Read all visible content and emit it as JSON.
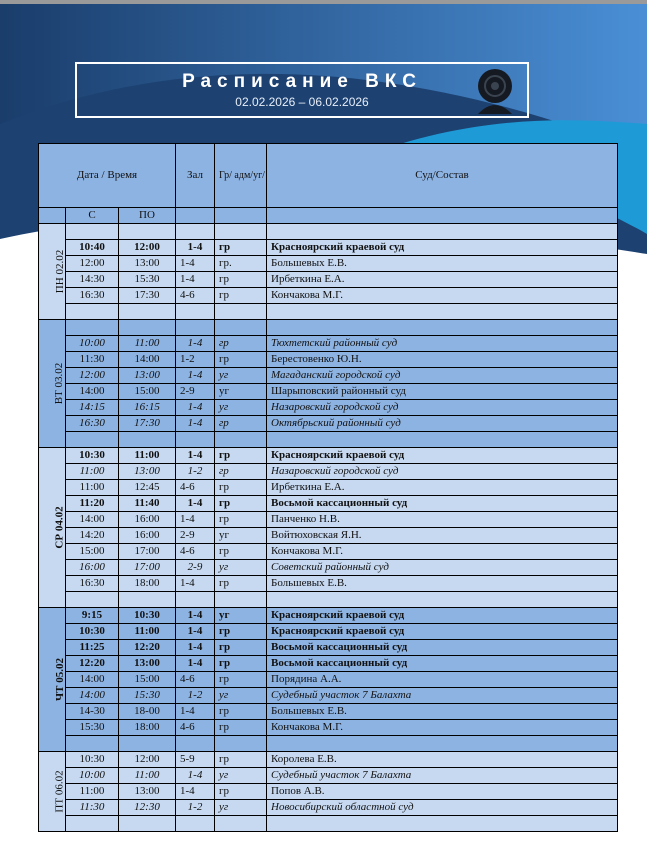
{
  "header": {
    "title": "Расписание ВКС",
    "date_range": "02.02.2026 – 06.02.2026",
    "icon": "webcam-icon"
  },
  "colors": {
    "header_bg": "#8db3e2",
    "light_row": "#c6d9f1",
    "mid_row": "#8db3e2",
    "banner_dark": "#1b3f6e"
  },
  "table": {
    "columns": {
      "datetime": "Дата / Время",
      "hall": "Зал",
      "type": "Гр/ адм/уг/ мат",
      "court": "Суд/Состав",
      "from": "С",
      "to": "ПО"
    },
    "days": [
      {
        "label": "ПН 02.02",
        "shade": "light",
        "lead_blank": true,
        "rows": [
          {
            "from": "10:40",
            "to": "12:00",
            "hall": "1-4",
            "type": "гр",
            "court": "Красноярский краевой суд",
            "style": "bold"
          },
          {
            "from": "12:00",
            "to": "13:00",
            "hall": "1-4",
            "type": "гр.",
            "court": "Большевых Е.В.",
            "style": "normal"
          },
          {
            "from": "14:30",
            "to": "15:30",
            "hall": "1-4",
            "type": "гр",
            "court": "Ирбеткина  Е.А.",
            "style": "normal"
          },
          {
            "from": "16:30",
            "to": "17:30",
            "hall": "4-6",
            "type": "гр",
            "court": "Кончакова М.Г.",
            "style": "normal"
          }
        ]
      },
      {
        "label": "ВТ 03.02",
        "shade": "mid",
        "lead_blank": true,
        "rows": [
          {
            "from": "10:00",
            "to": "11:00",
            "hall": "1-4",
            "type": "гр",
            "court": "Тюхтетский районный суд",
            "style": "italic"
          },
          {
            "from": "11:30",
            "to": "14:00",
            "hall": "1-2",
            "type": "гр",
            "court": "Берестовенко Ю.Н.",
            "style": "normal"
          },
          {
            "from": "12:00",
            "to": "13:00",
            "hall": "1-4",
            "type": "уг",
            "court": "Магаданский городской суд",
            "style": "italic"
          },
          {
            "from": "14:00",
            "to": "15:00",
            "hall": "2-9",
            "type": "уг",
            "court": "Шарыповский районный суд",
            "style": "normal"
          },
          {
            "from": "14:15",
            "to": "16:15",
            "hall": "1-4",
            "type": "уг",
            "court": "Назаровский городской суд",
            "style": "italic"
          },
          {
            "from": "16:30",
            "to": "17:30",
            "hall": "1-4",
            "type": "гр",
            "court": "Октябрьский районный суд",
            "style": "italic"
          }
        ]
      },
      {
        "label": "СР 04.02",
        "shade": "light",
        "lead_blank": false,
        "rows": [
          {
            "from": "10:30",
            "to": "11:00",
            "hall": "1-4",
            "type": "гр",
            "court": "Красноярский краевой суд",
            "style": "bold"
          },
          {
            "from": "11:00",
            "to": "13:00",
            "hall": "1-2",
            "type": "гр",
            "court": "Назаровский городской суд",
            "style": "italic"
          },
          {
            "from": "11:00",
            "to": "12:45",
            "hall": "4-6",
            "type": "гр",
            "court": "Ирбеткина  Е.А.",
            "style": "normal"
          },
          {
            "from": "11:20",
            "to": "11:40",
            "hall": "1-4",
            "type": "гр",
            "court": "Восьмой кассационный суд",
            "style": "bold"
          },
          {
            "from": "14:00",
            "to": "16:00",
            "hall": "1-4",
            "type": "гр",
            "court": "Панченко Н.В.",
            "style": "normal"
          },
          {
            "from": "14:20",
            "to": "16:00",
            "hall": "2-9",
            "type": "уг",
            "court": "Войтюховская Я.Н.",
            "style": "normal"
          },
          {
            "from": "15:00",
            "to": "17:00",
            "hall": "4-6",
            "type": "гр",
            "court": "Кончакова М.Г.",
            "style": "normal"
          },
          {
            "from": "16:00",
            "to": "17:00",
            "hall": "2-9",
            "type": "уг",
            "court": "Советский районный суд",
            "style": "italic"
          },
          {
            "from": "16:30",
            "to": "18:00",
            "hall": "1-4",
            "type": "гр",
            "court": "Большевых Е.В.",
            "style": "normal"
          }
        ]
      },
      {
        "label": "ЧТ 05.02",
        "shade": "mid",
        "lead_blank": false,
        "rows": [
          {
            "from": "9:15",
            "to": "10:30",
            "hall": "1-4",
            "type": "уг",
            "court": "Красноярский краевой суд",
            "style": "bold"
          },
          {
            "from": "10:30",
            "to": "11:00",
            "hall": "1-4",
            "type": "гр",
            "court": "Красноярский краевой суд",
            "style": "bold"
          },
          {
            "from": "11:25",
            "to": "12:20",
            "hall": "1-4",
            "type": "гр",
            "court": "Восьмой кассационный суд",
            "style": "bold"
          },
          {
            "from": "12:20",
            "to": "13:00",
            "hall": "1-4",
            "type": "гр",
            "court": "Восьмой кассационный суд",
            "style": "bold"
          },
          {
            "from": "14:00",
            "to": "15:00",
            "hall": "4-6",
            "type": "гр",
            "court": "Порядина А.А.",
            "style": "normal"
          },
          {
            "from": "14:00",
            "to": "15:30",
            "hall": "1-2",
            "type": "уг",
            "court": "Судебный участок 7 Балахта",
            "style": "italic"
          },
          {
            "from": "14-30",
            "to": "18-00",
            "hall": "1-4",
            "type": "гр",
            "court": "Большевых Е.В.",
            "style": "normal"
          },
          {
            "from": "15:30",
            "to": "18:00",
            "hall": "4-6",
            "type": "гр",
            "court": "Кончакова М.Г.",
            "style": "normal"
          }
        ]
      },
      {
        "label": "ПТ 06.02",
        "shade": "light",
        "lead_blank": false,
        "rows": [
          {
            "from": "10:30",
            "to": "12:00",
            "hall": "5-9",
            "type": "гр",
            "court": "Королева Е.В.",
            "style": "normal"
          },
          {
            "from": "10:00",
            "to": "11:00",
            "hall": "1-4",
            "type": "уг",
            "court": "Судебный участок 7 Балахта",
            "style": "italic"
          },
          {
            "from": "11:00",
            "to": "13:00",
            "hall": "1-4",
            "type": "гр",
            "court": "Попов А.В.",
            "style": "normal"
          },
          {
            "from": "11:30",
            "to": "12:30",
            "hall": "1-2",
            "type": "уг",
            "court": "Новосибирский областной суд",
            "style": "italic"
          }
        ]
      }
    ]
  }
}
